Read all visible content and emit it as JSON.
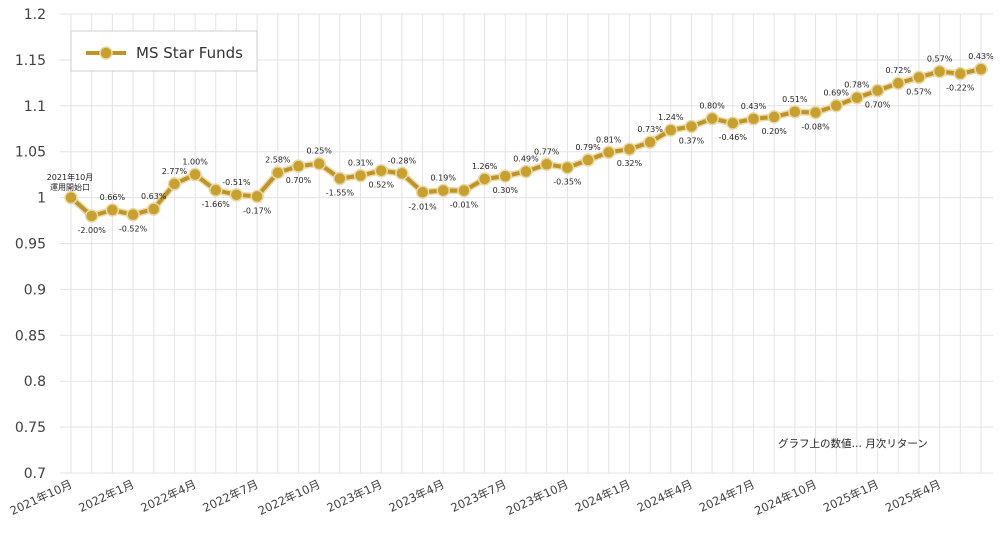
{
  "chart_data": {
    "type": "line",
    "title": "",
    "xlabel": "",
    "ylabel": "",
    "ylim": [
      0.7,
      1.2
    ],
    "yticks": [
      "0.7",
      "0.75",
      "0.8",
      "0.85",
      "0.9",
      "0.95",
      "1",
      "1.05",
      "1.1",
      "1.15",
      "1.2"
    ],
    "ytick_values": [
      0.7,
      0.75,
      0.8,
      0.85,
      0.9,
      0.95,
      1.0,
      1.05,
      1.1,
      1.15,
      1.2
    ],
    "grid": "vertical and horizontal",
    "legend_position": "top-left",
    "x": [
      "2021年10月",
      "2021年11月",
      "2021年12月",
      "2022年1月",
      "2022年2月",
      "2022年3月",
      "2022年4月",
      "2022年5月",
      "2022年6月",
      "2022年7月",
      "2022年8月",
      "2022年9月",
      "2022年10月",
      "2022年11月",
      "2022年12月",
      "2023年1月",
      "2023年2月",
      "2023年3月",
      "2023年4月",
      "2023年5月",
      "2023年6月",
      "2023年7月",
      "2023年8月",
      "2023年9月",
      "2023年10月",
      "2023年11月",
      "2023年12月",
      "2024年1月",
      "2024年2月",
      "2024年3月",
      "2024年4月",
      "2024年5月",
      "2024年6月",
      "2024年7月",
      "2024年8月",
      "2024年9月",
      "2024年10月",
      "2024年11月",
      "2024年12月",
      "2025年1月",
      "2025年2月",
      "2025年3月",
      "2025年4月",
      "2025年5月",
      "2025年6月"
    ],
    "xtick_labels": [
      "2021年10月",
      "2022年1月",
      "2022年4月",
      "2022年7月",
      "2022年10月",
      "2023年1月",
      "2023年4月",
      "2023年7月",
      "2023年10月",
      "2024年1月",
      "2024年4月",
      "2024年7月",
      "2024年10月",
      "2025年1月",
      "2025年4月"
    ],
    "xtick_every": 3,
    "series": [
      {
        "name": "MS Star Funds",
        "color": "#c09326",
        "values": [
          1.0,
          0.98,
          0.9865,
          0.9814,
          0.9876,
          1.0149,
          1.0251,
          1.0081,
          1.003,
          1.0013,
          1.0271,
          1.0343,
          1.0369,
          1.0208,
          1.024,
          1.0293,
          1.0264,
          1.0058,
          1.0077,
          1.0076,
          1.0203,
          1.0234,
          1.0284,
          1.0363,
          1.0327,
          1.0409,
          1.0493,
          1.0527,
          1.0604,
          1.0735,
          1.0775,
          1.0861,
          1.0811,
          1.0858,
          1.0879,
          1.0935,
          1.0926,
          1.1002,
          1.1088,
          1.1166,
          1.1246,
          1.131,
          1.1374,
          1.135,
          1.1399
        ]
      }
    ],
    "data_labels": [
      "",
      "-2.00%",
      "0.66%",
      "-0.52%",
      "0.63%",
      "2.77%",
      "1.00%",
      "-1.66%",
      "-0.51%",
      "-0.17%",
      "2.58%",
      "0.70%",
      "0.25%",
      "-1.55%",
      "0.31%",
      "0.52%",
      "-0.28%",
      "-2.01%",
      "0.19%",
      "-0.01%",
      "1.26%",
      "0.30%",
      "0.49%",
      "0.77%",
      "-0.35%",
      "0.79%",
      "0.81%",
      "0.32%",
      "0.73%",
      "1.24%",
      "0.37%",
      "0.80%",
      "-0.46%",
      "0.43%",
      "0.20%",
      "0.51%",
      "-0.08%",
      "0.69%",
      "0.78%",
      "0.70%",
      "0.72%",
      "0.57%",
      "0.57%",
      "-0.22%",
      "0.43%"
    ],
    "label_positions": [
      "",
      "below",
      "above",
      "below",
      "above",
      "above",
      "above",
      "below",
      "above",
      "below",
      "above",
      "below",
      "above",
      "below",
      "above",
      "below",
      "above",
      "below",
      "above",
      "below",
      "above",
      "below",
      "above",
      "above",
      "below",
      "above",
      "above",
      "below",
      "above",
      "above",
      "below",
      "above",
      "below",
      "above",
      "below",
      "above",
      "below",
      "above",
      "above",
      "below",
      "above",
      "below",
      "above",
      "below",
      "above"
    ],
    "start_annotation": [
      "2021年10月",
      "運用開始口"
    ],
    "note": "グラフ上の数値… 月次リターン"
  },
  "colors": {
    "line": "#c09326",
    "marker": "#c8a02e",
    "grid": "#e3e3e3",
    "legend_border": "#cfcfcf"
  }
}
